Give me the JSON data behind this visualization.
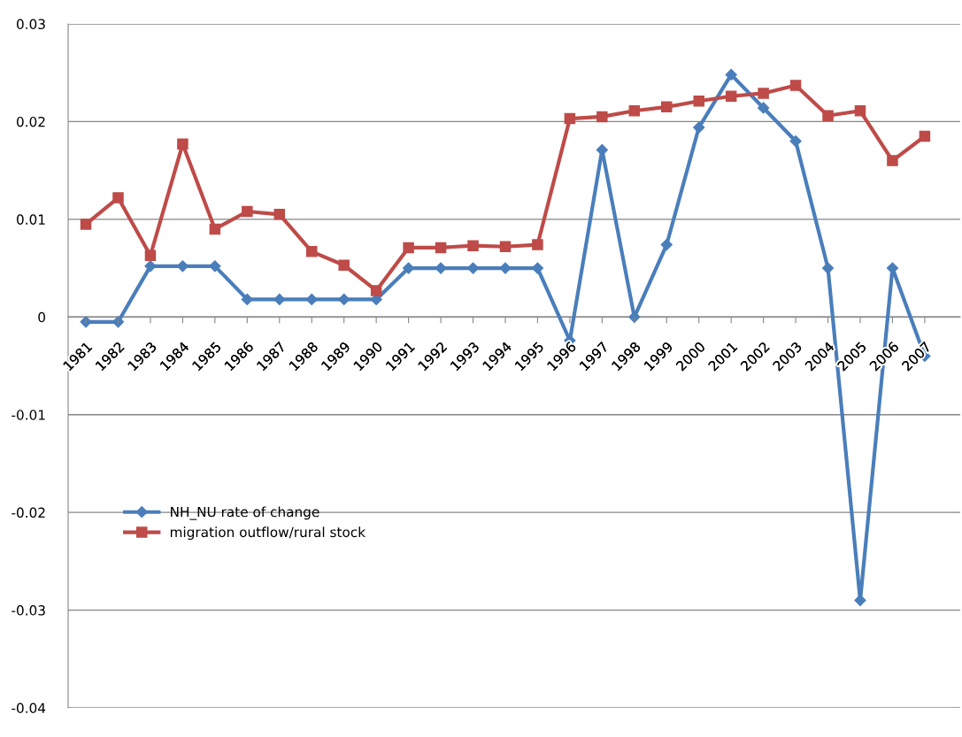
{
  "chart_data": {
    "type": "line",
    "categories": [
      "1981",
      "1982",
      "1983",
      "1984",
      "1985",
      "1986",
      "1987",
      "1988",
      "1989",
      "1990",
      "1991",
      "1992",
      "1993",
      "1994",
      "1995",
      "1996",
      "1997",
      "1998",
      "1999",
      "2000",
      "2001",
      "2002",
      "2003",
      "2004",
      "2005",
      "2006",
      "2007"
    ],
    "series": [
      {
        "name": "NH_NU rate of change",
        "color": "#4a7ebb",
        "marker": "diamond",
        "values": [
          -0.0005,
          -0.0005,
          0.0052,
          0.0052,
          0.0052,
          0.0018,
          0.0018,
          0.0018,
          0.0018,
          0.0018,
          0.005,
          0.005,
          0.005,
          0.005,
          0.005,
          -0.0024,
          0.0171,
          0.0,
          0.0074,
          0.0194,
          0.0248,
          0.0214,
          0.018,
          0.005,
          -0.029,
          0.005,
          -0.004
        ]
      },
      {
        "name": "migration outflow/rural stock",
        "color": "#be4b48",
        "marker": "square",
        "values": [
          0.0095,
          0.0122,
          0.0063,
          0.0177,
          0.009,
          0.0108,
          0.0105,
          0.0067,
          0.0053,
          0.0027,
          0.0071,
          0.0071,
          0.0073,
          0.0072,
          0.0074,
          0.0203,
          0.0205,
          0.0211,
          0.0215,
          0.0221,
          0.0226,
          0.0229,
          0.0237,
          0.0206,
          0.0211,
          0.016,
          0.0185
        ]
      }
    ],
    "ylim": [
      -0.04,
      0.03
    ],
    "yticks": [
      {
        "value": -0.04,
        "label": "-0.04"
      },
      {
        "value": -0.03,
        "label": "-0.03"
      },
      {
        "value": -0.02,
        "label": "-0.02"
      },
      {
        "value": -0.01,
        "label": "-0.01"
      },
      {
        "value": 0,
        "label": "0"
      },
      {
        "value": 0.01,
        "label": "0.01"
      },
      {
        "value": 0.02,
        "label": "0.02"
      },
      {
        "value": 0.03,
        "label": "0.03"
      }
    ],
    "grid": "y",
    "legend": "left",
    "line_style": "solid"
  }
}
